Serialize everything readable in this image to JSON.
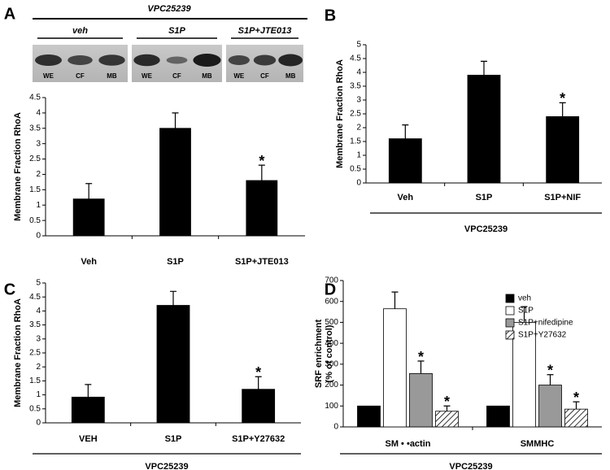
{
  "chart_data": [
    {
      "type": "bar",
      "panel": "A",
      "blot": {
        "title": "VPC25239",
        "groups": [
          "veh",
          "S1P",
          "S1P+JTE013"
        ],
        "lanes": [
          "WE",
          "CF",
          "MB"
        ]
      },
      "ylabel": "Membrane Fraction RhoA",
      "categories": [
        "Veh",
        "S1P",
        "S1P+JTE013"
      ],
      "values": [
        1.2,
        3.5,
        1.8
      ],
      "errors": [
        0.5,
        0.5,
        0.5
      ],
      "significance": [
        null,
        null,
        "*"
      ],
      "color": "#000000",
      "ylim": [
        0,
        4.5
      ],
      "yticks": [
        0,
        0.5,
        1,
        1.5,
        2,
        2.5,
        3,
        3.5,
        4,
        4.5
      ]
    },
    {
      "type": "bar",
      "panel": "B",
      "group_label": "VPC25239",
      "ylabel": "Membrane Fraction RhoA",
      "categories": [
        "Veh",
        "S1P",
        "S1P+NIF"
      ],
      "values": [
        1.6,
        3.9,
        2.4
      ],
      "errors": [
        0.5,
        0.5,
        0.5
      ],
      "significance": [
        null,
        null,
        "*"
      ],
      "color": "#000000",
      "ylim": [
        0,
        5
      ],
      "yticks": [
        0,
        0.5,
        1,
        1.5,
        2,
        2.5,
        3,
        3.5,
        4,
        4.5,
        5
      ]
    },
    {
      "type": "bar",
      "panel": "C",
      "group_label": "VPC25239",
      "ylabel": "Membrane Fraction RhoA",
      "categories": [
        "VEH",
        "S1P",
        "S1P+Y27632"
      ],
      "values": [
        0.92,
        4.2,
        1.2
      ],
      "errors": [
        0.45,
        0.5,
        0.45
      ],
      "significance": [
        null,
        null,
        "*"
      ],
      "color": "#000000",
      "ylim": [
        0,
        5
      ],
      "yticks": [
        0,
        0.5,
        1,
        1.5,
        2,
        2.5,
        3,
        3.5,
        4,
        4.5,
        5
      ]
    },
    {
      "type": "bar",
      "panel": "D",
      "group_label": "VPC25239",
      "ylabel": [
        "SRF enrichment",
        "(% of control)"
      ],
      "categories": [
        "SM • •actin",
        "SMMHC"
      ],
      "series": [
        {
          "name": "veh",
          "color": "#000000",
          "values": [
            100,
            100
          ]
        },
        {
          "name": "S1P",
          "color": "#ffffff",
          "values": [
            565,
            500
          ],
          "errors": [
            80,
            75
          ]
        },
        {
          "name": "S1P+nifedipine",
          "color": "#999999",
          "values": [
            255,
            200
          ],
          "errors": [
            60,
            50
          ],
          "significance": [
            "*",
            "*"
          ]
        },
        {
          "name": "S1P+Y27632",
          "color": "#ffffff",
          "hatch": true,
          "values": [
            75,
            85
          ],
          "errors": [
            25,
            35
          ],
          "significance": [
            "*",
            "*"
          ]
        }
      ],
      "legend": "upper right",
      "ylim": [
        0,
        700
      ],
      "yticks": [
        0,
        100,
        200,
        300,
        400,
        500,
        600,
        700
      ]
    }
  ]
}
